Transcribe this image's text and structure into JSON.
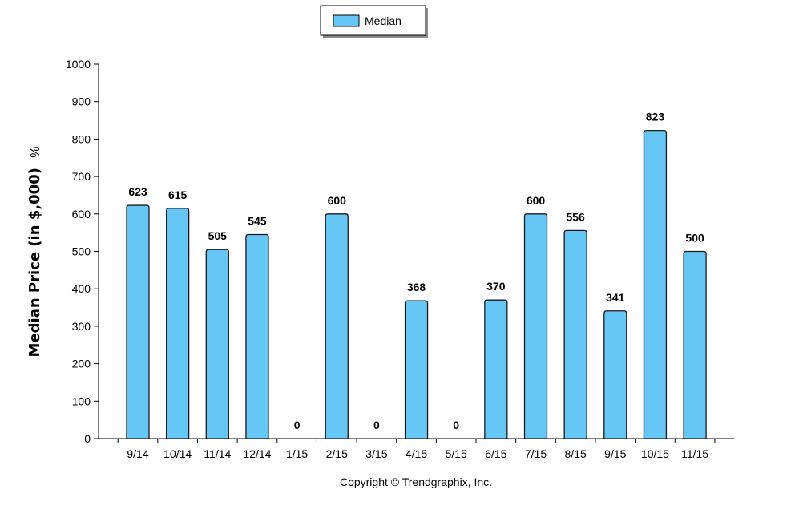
{
  "chart_data": {
    "type": "bar",
    "categories": [
      "9/14",
      "10/14",
      "11/14",
      "12/14",
      "1/15",
      "2/15",
      "3/15",
      "4/15",
      "5/15",
      "6/15",
      "7/15",
      "8/15",
      "9/15",
      "10/15",
      "11/15"
    ],
    "series": [
      {
        "name": "Median",
        "values": [
          623,
          615,
          505,
          545,
          0,
          600,
          0,
          368,
          0,
          370,
          600,
          556,
          341,
          823,
          500
        ]
      }
    ],
    "ylabel": "Median Price (in $,000)",
    "ylabel_suffix": "%",
    "xlabel": "",
    "ylim": [
      0,
      1000
    ],
    "yticks": [
      0,
      100,
      200,
      300,
      400,
      500,
      600,
      700,
      800,
      900,
      1000
    ],
    "data_labels": true,
    "legend_position": "top-center",
    "grid": false,
    "colors": {
      "bar_fill": "#66c6f5",
      "bar_stroke": "#1a1a1a",
      "axis": "#000000"
    }
  },
  "footer": {
    "copyright": "Copyright © Trendgraphix, Inc."
  }
}
